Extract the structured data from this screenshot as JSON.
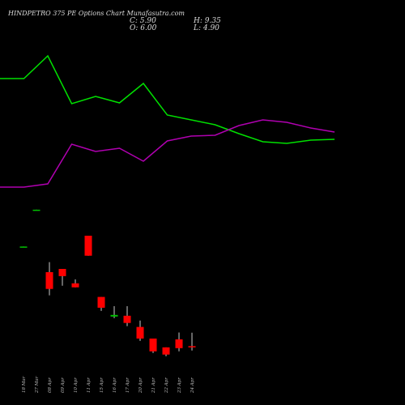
{
  "header": {
    "title": "HINDPETRO 375 PE Options Chart Munafasutra.com",
    "close": "C: 5.90",
    "high": "H: 9.35",
    "open": "O: 6.00",
    "low": "L: 4.90"
  },
  "chart_data": [
    {
      "type": "line",
      "ylim": [
        0,
        100
      ],
      "series": [
        {
          "color": "#00e000",
          "values": [
            76.5,
            76.5,
            90.5,
            61,
            65.5,
            61.5,
            73.5,
            54,
            51,
            48,
            42.5,
            37.5,
            36.5,
            38.5,
            39
          ]
        },
        {
          "color": "#b000b0",
          "values": [
            9.5,
            9.5,
            11.5,
            36,
            31.5,
            33.5,
            25.5,
            38,
            41,
            41.5,
            47.5,
            51,
            49.5,
            46,
            43.5
          ]
        }
      ]
    },
    {
      "type": "candlestick",
      "ylim": [
        0,
        42
      ],
      "up_color": "#00c000",
      "down_color": "#ff0000",
      "categories": [
        "18 Mar",
        "27 Mar",
        "08 Apr",
        "09 Apr",
        "10 Apr",
        "11 Apr",
        "15 Apr",
        "16 Apr",
        "17 Apr",
        "20 Apr",
        "21 Apr",
        "22 Apr",
        "23 Apr",
        "24 Apr"
      ],
      "open": [
        30.8,
        40.0,
        24.5,
        25.3,
        21.7,
        33.6,
        18.3,
        13.4,
        13.6,
        10.8,
        7.9,
        5.7,
        7.7,
        6.0
      ],
      "high": [
        30.9,
        40.1,
        27.0,
        25.3,
        22.7,
        33.6,
        18.3,
        16.0,
        16.0,
        12.4,
        7.9,
        5.7,
        9.4,
        9.35
      ],
      "low": [
        30.8,
        40.0,
        18.7,
        21.1,
        20.7,
        28.6,
        14.8,
        13.0,
        11.0,
        7.3,
        4.3,
        3.5,
        4.7,
        4.9
      ],
      "close": [
        30.9,
        40.1,
        20.3,
        23.5,
        20.7,
        28.6,
        15.6,
        13.8,
        11.8,
        7.9,
        4.7,
        3.9,
        5.5,
        5.9
      ]
    }
  ]
}
